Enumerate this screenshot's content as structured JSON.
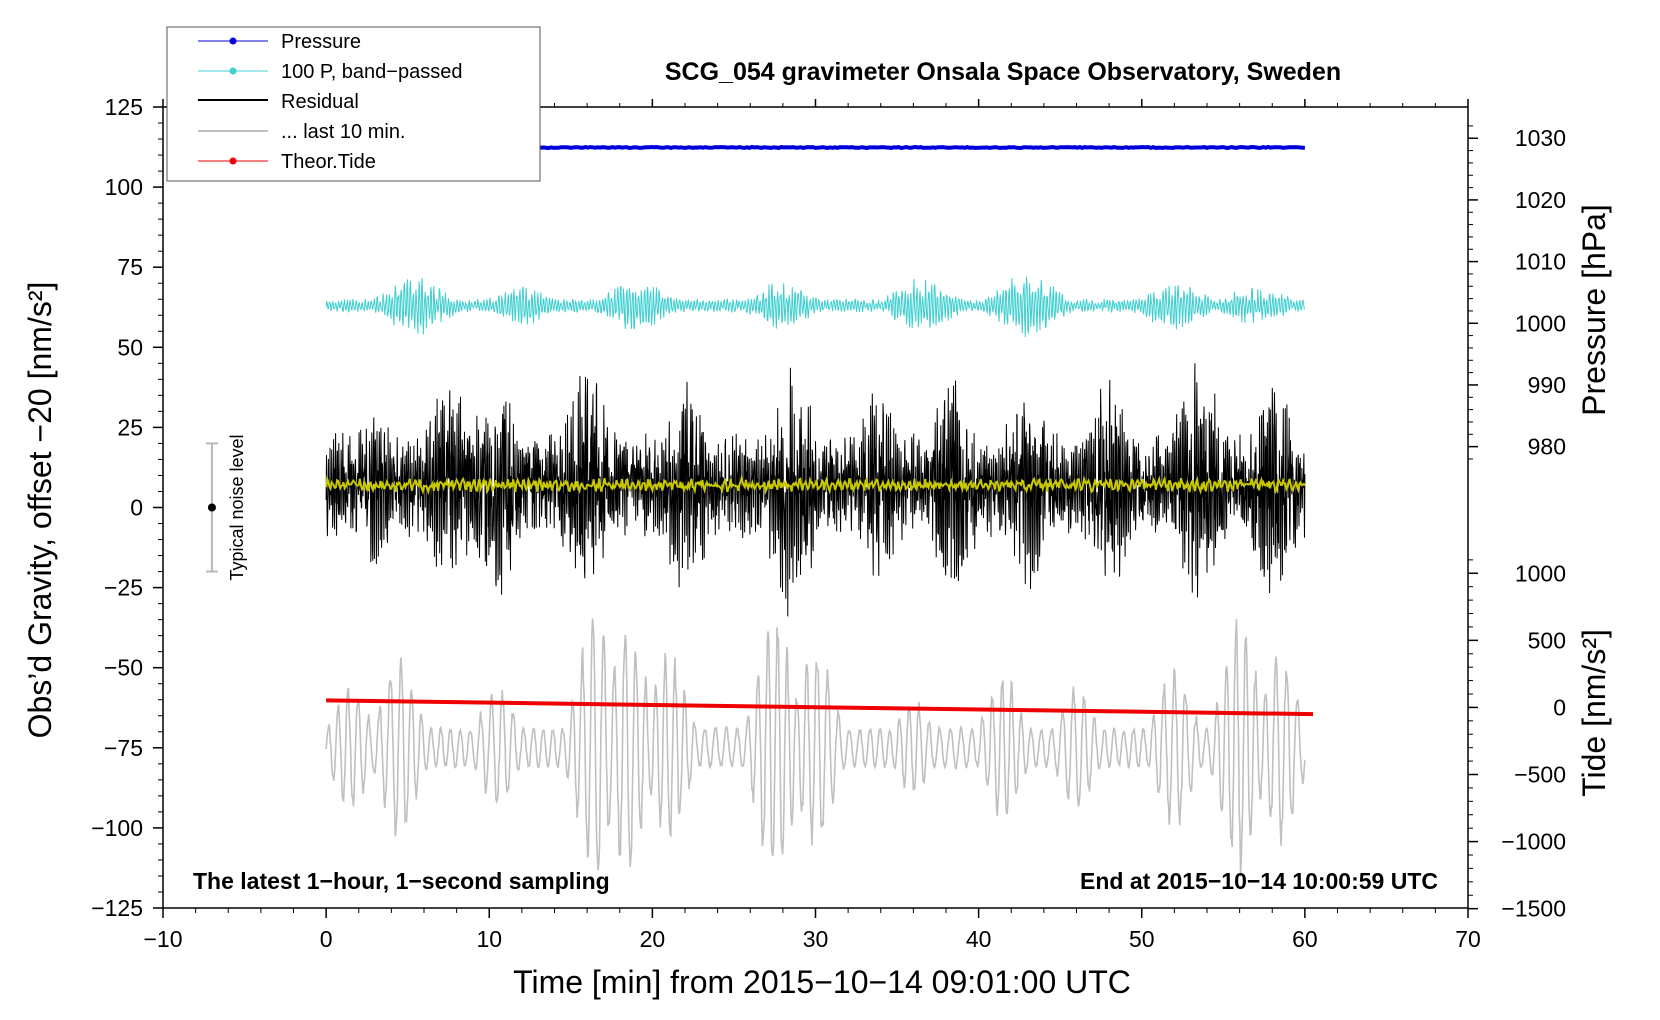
{
  "chart_data": {
    "type": "line",
    "title": "SCG_054 gravimeter Onsala Space Observatory, Sweden",
    "xlabel": "Time [min] from 2015−10−14 09:01:00 UTC",
    "ylabel": "Obs’d Gravity, offset −20 [nm/s²]",
    "xlim": [
      -10,
      70
    ],
    "ylim": [
      -125,
      125
    ],
    "x_ticks": [
      -10,
      0,
      10,
      20,
      30,
      40,
      50,
      60,
      70
    ],
    "x_tick_labels": [
      "−10",
      "0",
      "10",
      "20",
      "30",
      "40",
      "50",
      "60",
      "70"
    ],
    "y_ticks": [
      -125,
      -100,
      -75,
      -50,
      -25,
      0,
      25,
      50,
      75,
      100,
      125
    ],
    "y_tick_labels": [
      "−125",
      "−100",
      "−75",
      "−50",
      "−25",
      "0",
      "25",
      "50",
      "75",
      "100",
      "125"
    ],
    "right_axes": {
      "pressure": {
        "label": "Pressure [hPa]",
        "ticks": [
          980,
          990,
          1000,
          1010,
          1020,
          1030
        ],
        "tick_labels": [
          "980",
          "990",
          "1000",
          "1010",
          "1020",
          "1030"
        ],
        "left_axis_at_1000": 57.5,
        "left_units_per_hpa": 1.925
      },
      "tide": {
        "label": "Tide [nm/s²]",
        "ticks": [
          -1500,
          -1000,
          -500,
          0,
          500,
          1000
        ],
        "tick_labels": [
          "−1500",
          "−1000",
          "−500",
          "0",
          "500",
          "1000"
        ],
        "left_axis_at_0": -62.4,
        "left_units_per_unit": 0.04187
      }
    },
    "legend": {
      "position": "top-left",
      "entries": [
        "Pressure",
        "100 P, band−passed",
        "Residual",
        "... last 10 min.",
        "Theor.Tide"
      ]
    },
    "series": [
      {
        "name": "Pressure",
        "color": "#0000dd",
        "kind": "line",
        "x_range": [
          0,
          60
        ],
        "level_hpa": 1028.5,
        "noise_hpa": 0.08
      },
      {
        "name": "100 P, band−passed",
        "color": "#3fcfd0",
        "kind": "oscillation",
        "x_range": [
          0,
          60
        ],
        "center": 63,
        "peak_amplitude": 11
      },
      {
        "name": "Residual",
        "color": "#000000",
        "kind": "oscillation",
        "x_range": [
          0,
          60
        ],
        "center": 7,
        "peak_amplitude": 42
      },
      {
        "name": "... last 10 min.",
        "color": "#c0c0c0",
        "kind": "oscillation",
        "x_range": [
          0,
          60
        ],
        "center": -75,
        "peak_amplitude": 44
      },
      {
        "name": "Theor.Tide",
        "color": "#ee0000",
        "kind": "line",
        "x": [
          0,
          60.5
        ],
        "y": [
          -60.2,
          -64.5
        ]
      },
      {
        "name": "smoothed residual",
        "color": "#c8c800",
        "kind": "oscillation",
        "x_range": [
          0,
          60
        ],
        "center": 7,
        "peak_amplitude": 2.2
      }
    ],
    "noise_bar": {
      "label": "Typical noise level",
      "x": -7,
      "center": 0,
      "low": -20,
      "high": 20
    },
    "annotations": {
      "left": "The latest 1−hour, 1−second sampling",
      "right": "End at 2015−10−14 10:00:59 UTC"
    }
  }
}
